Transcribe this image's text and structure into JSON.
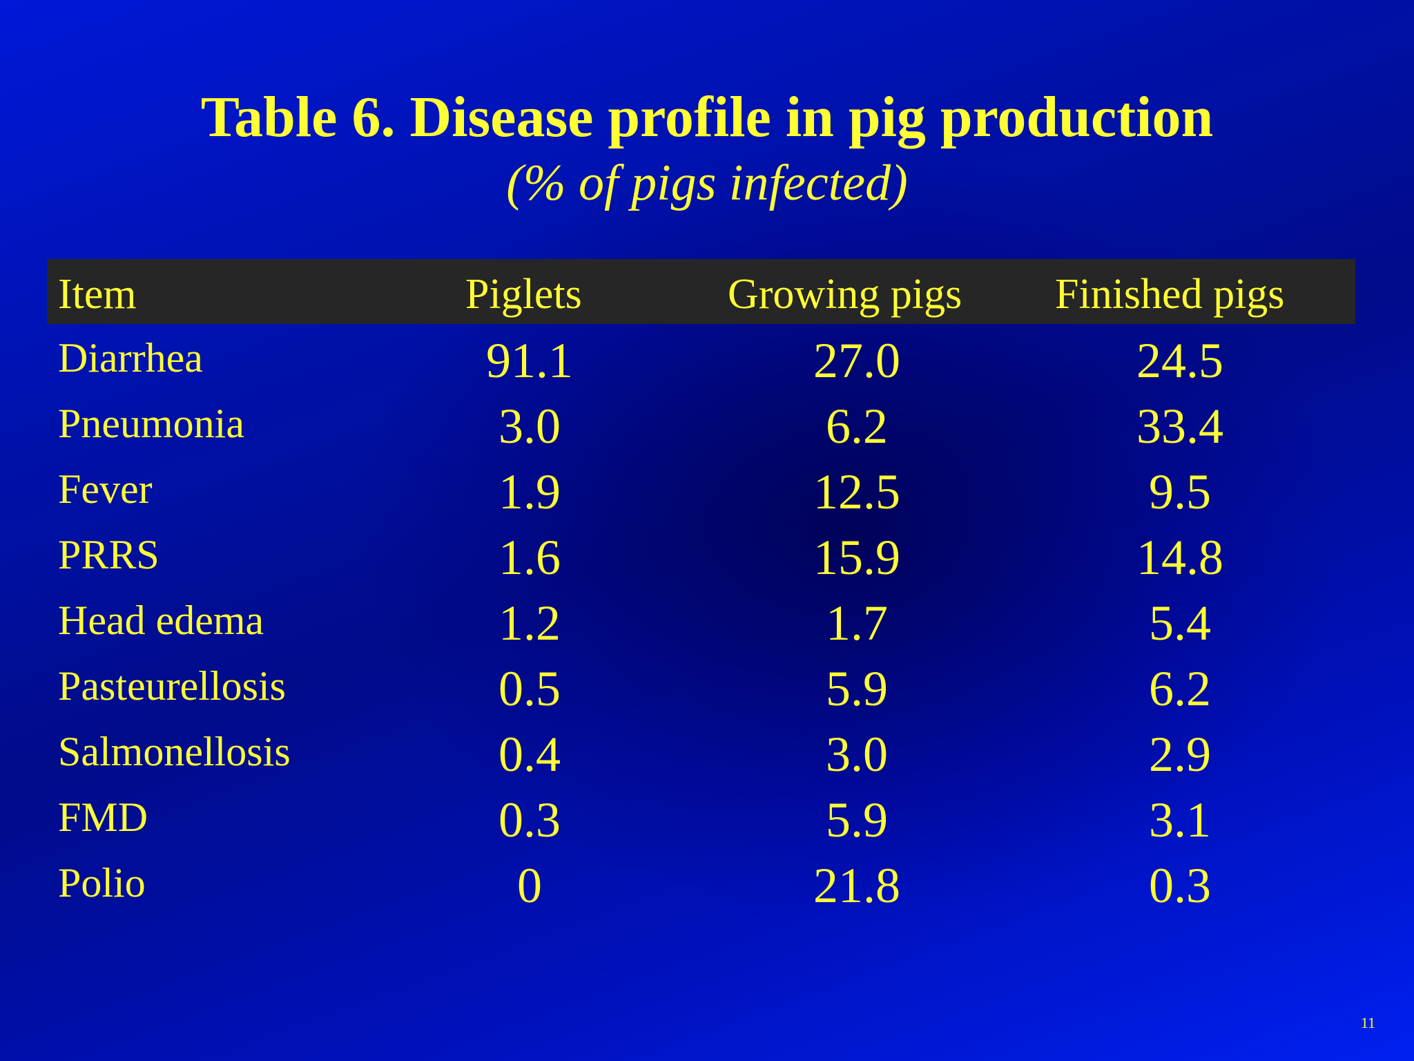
{
  "slide": {
    "title": "Table 6.  Disease profile in pig production",
    "subtitle": "(% of pigs infected)",
    "page_number": "11",
    "accent_color": "#ffff33",
    "background_color": "#0010c0",
    "header_bar_color": "#262626"
  },
  "table": {
    "headers": [
      "Item",
      "Piglets",
      "Growing pigs",
      "Finished pigs"
    ],
    "rows": [
      [
        "Diarrhea",
        "91.1",
        "27.0",
        "24.5"
      ],
      [
        "Pneumonia",
        "3.0",
        "6.2",
        "33.4"
      ],
      [
        "Fever",
        "1.9",
        "12.5",
        "9.5"
      ],
      [
        "PRRS",
        "1.6",
        "15.9",
        "14.8"
      ],
      [
        "Head edema",
        "1.2",
        "1.7",
        "5.4"
      ],
      [
        "Pasteurellosis",
        "0.5",
        "5.9",
        "6.2"
      ],
      [
        "Salmonellosis",
        "0.4",
        "3.0",
        "2.9"
      ],
      [
        "FMD",
        "0.3",
        "5.9",
        "3.1"
      ],
      [
        "Polio",
        "0",
        "21.8",
        "0.3"
      ]
    ]
  }
}
